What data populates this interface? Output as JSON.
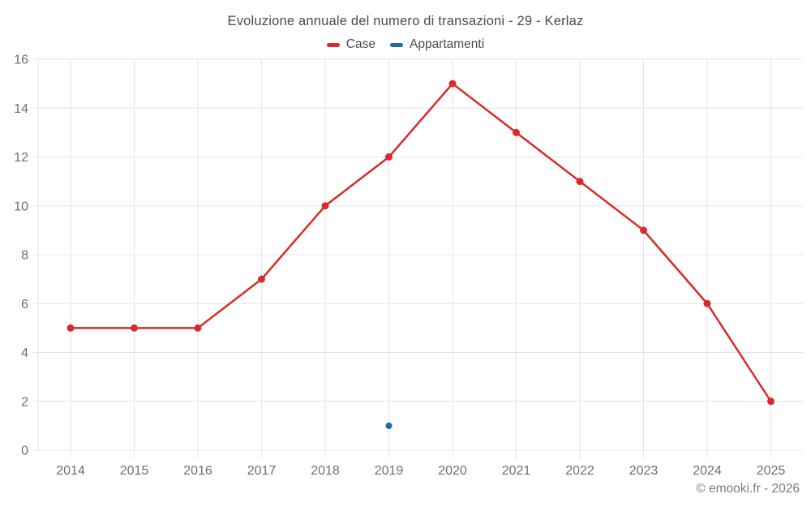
{
  "header": {
    "title": "Evoluzione annuale del numero di transazioni - 29 - Kerlaz"
  },
  "legend": {
    "items": [
      {
        "label": "Case"
      },
      {
        "label": "Appartamenti"
      }
    ]
  },
  "footer": {
    "credit": "© emooki.fr - 2026"
  },
  "colors": {
    "case_red": "#d92b2b",
    "appartamenti_blue": "#1a6da6",
    "grid": "#e4e4e4",
    "axis_text": "#6e6e6e",
    "title_text": "#4c4c4c",
    "footer_text": "#7b7b7b",
    "background": "#ffffff"
  },
  "chart_data": {
    "type": "line",
    "title": "Evoluzione annuale del numero di transazioni - 29 - Kerlaz",
    "categories": [
      "2014",
      "2015",
      "2016",
      "2017",
      "2018",
      "2019",
      "2020",
      "2021",
      "2022",
      "2023",
      "2024",
      "2025"
    ],
    "series": [
      {
        "name": "Case",
        "color": "#d92b2b",
        "values": [
          5,
          5,
          5,
          7,
          10,
          12,
          15,
          13,
          11,
          9,
          6,
          2
        ]
      },
      {
        "name": "Appartamenti",
        "color": "#1a6da6",
        "values": [
          null,
          null,
          null,
          null,
          null,
          1,
          null,
          null,
          null,
          null,
          null,
          null
        ]
      }
    ],
    "xlabel": "",
    "ylabel": "",
    "ylim": [
      0,
      16
    ],
    "ytick_step": 2,
    "grid": true,
    "legend_position": "top"
  }
}
